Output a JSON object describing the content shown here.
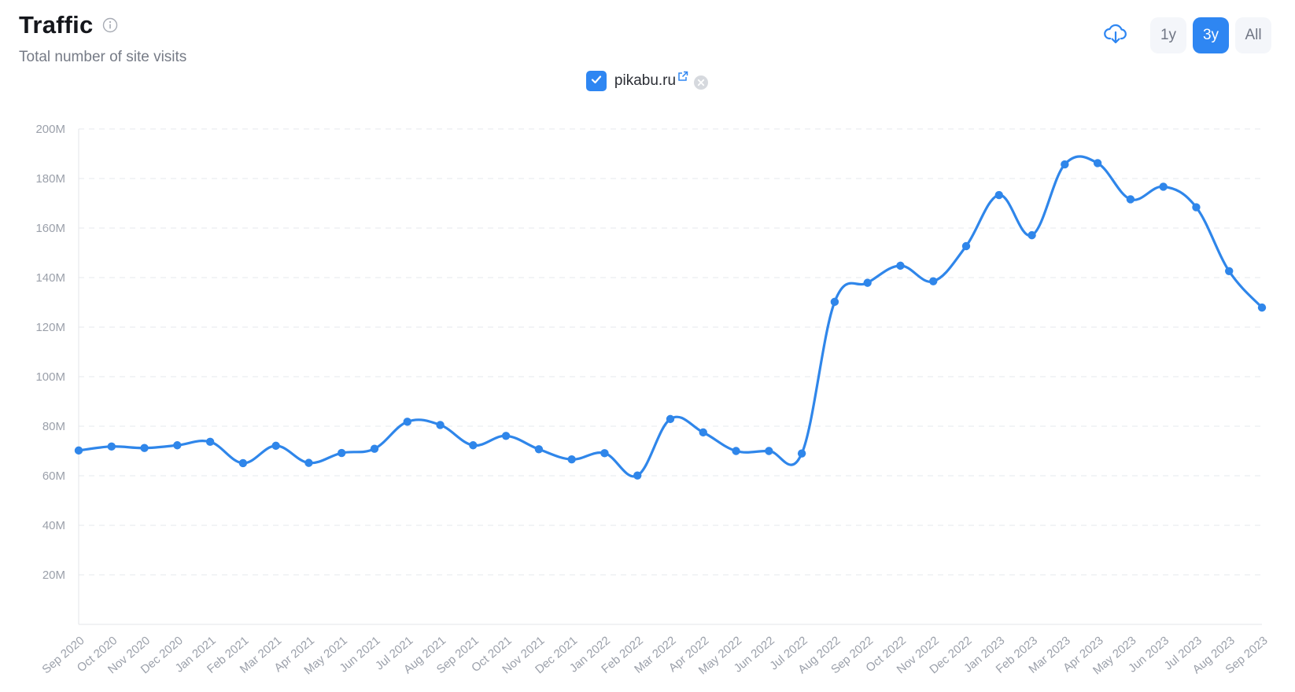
{
  "header": {
    "title": "Traffic",
    "subtitle": "Total number of site visits"
  },
  "controls": {
    "ranges": [
      {
        "label": "1y",
        "active": false
      },
      {
        "label": "3y",
        "active": true
      },
      {
        "label": "All",
        "active": false
      }
    ]
  },
  "legend": {
    "site": "pikabu.ru",
    "checked": true
  },
  "colors": {
    "accent": "#2e86f2",
    "line": "#2f86ea"
  },
  "chart_data": {
    "type": "line",
    "title": "",
    "xlabel": "",
    "ylabel": "",
    "ylim": [
      0,
      200
    ],
    "y_unit_suffix": "M",
    "y_ticks": [
      "20M",
      "40M",
      "60M",
      "80M",
      "100M",
      "120M",
      "140M",
      "160M",
      "180M",
      "200M"
    ],
    "grid": true,
    "categories": [
      "Sep 2020",
      "Oct 2020",
      "Nov 2020",
      "Dec 2020",
      "Jan 2021",
      "Feb 2021",
      "Mar 2021",
      "Apr 2021",
      "May 2021",
      "Jun 2021",
      "Jul 2021",
      "Aug 2021",
      "Sep 2021",
      "Oct 2021",
      "Nov 2021",
      "Dec 2021",
      "Jan 2022",
      "Feb 2022",
      "Mar 2022",
      "Apr 2022",
      "May 2022",
      "Jun 2022",
      "Jul 2022",
      "Aug 2022",
      "Sep 2022",
      "Oct 2022",
      "Nov 2022",
      "Dec 2022",
      "Jan 2023",
      "Feb 2023",
      "Mar 2023",
      "Apr 2023",
      "May 2023",
      "Jun 2023",
      "Jul 2023",
      "Aug 2023",
      "Sep 2023"
    ],
    "series": [
      {
        "name": "pikabu.ru",
        "values": [
          70.2,
          71.8,
          71.2,
          72.3,
          73.7,
          65.1,
          72.1,
          65.2,
          69.2,
          70.9,
          81.8,
          80.5,
          72.3,
          76.1,
          70.7,
          66.6,
          69.1,
          60.1,
          82.9,
          77.5,
          70.0,
          70.0,
          69.0,
          130.2,
          137.9,
          144.8,
          138.5,
          152.7,
          173.3,
          157.1,
          185.7,
          186.2,
          171.6,
          176.7,
          168.4,
          142.6,
          127.9
        ]
      }
    ]
  }
}
